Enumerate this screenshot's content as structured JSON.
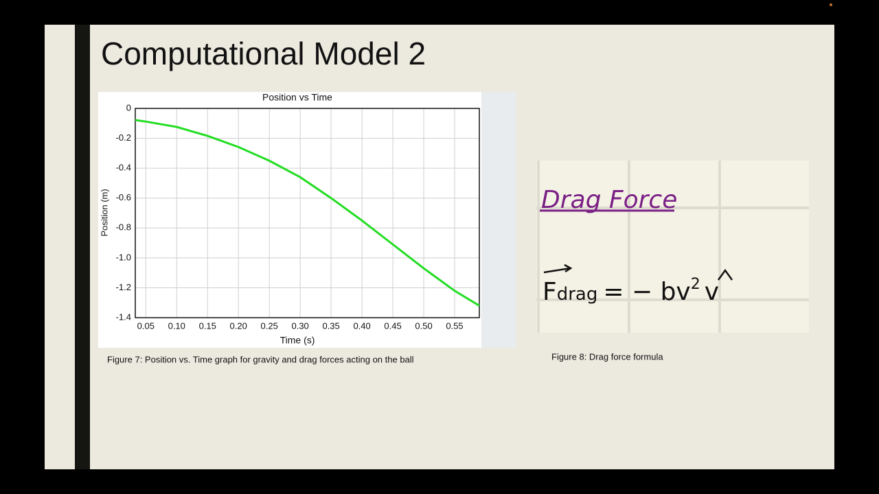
{
  "slide": {
    "title": "Computational Model 2",
    "figure7_caption": "Figure 7: Position vs. Time graph for gravity and drag forces acting on the ball",
    "figure8_caption": "Figure 8: Drag force formula",
    "drag_heading": "Drag Force",
    "formula": {
      "lhs": "F",
      "lhs_sub": "drag",
      "rhs": "= − bv",
      "exp": "2",
      "unit": "v"
    }
  },
  "chart_data": {
    "type": "line",
    "title": "Position vs Time",
    "x_label": "Time (s)",
    "y_label": "Position (m)",
    "x": [
      0.033,
      0.05,
      0.1,
      0.15,
      0.2,
      0.25,
      0.3,
      0.35,
      0.4,
      0.45,
      0.5,
      0.55,
      0.59
    ],
    "values": [
      -0.078,
      -0.088,
      -0.124,
      -0.184,
      -0.258,
      -0.35,
      -0.46,
      -0.6,
      -0.75,
      -0.91,
      -1.07,
      -1.22,
      -1.32
    ],
    "color": "#22dd22",
    "xlim": [
      0.033,
      0.59
    ],
    "ylim": [
      -1.4,
      0
    ],
    "xticks": [
      0.05,
      {
        "value": 0.1,
        "label": "0.10"
      },
      0.15,
      {
        "value": 0.2,
        "label": "0.20"
      },
      0.25,
      {
        "value": 0.3,
        "label": "0.30"
      },
      0.35,
      {
        "value": 0.4,
        "label": "0.40"
      },
      0.45,
      {
        "value": 0.5,
        "label": "0.50"
      },
      0.55
    ],
    "yticks": [
      0,
      -0.2,
      -0.4,
      -0.6,
      -0.8,
      {
        "value": -1,
        "label": "-1.0"
      },
      -1.2,
      -1.4
    ],
    "grid": true
  }
}
